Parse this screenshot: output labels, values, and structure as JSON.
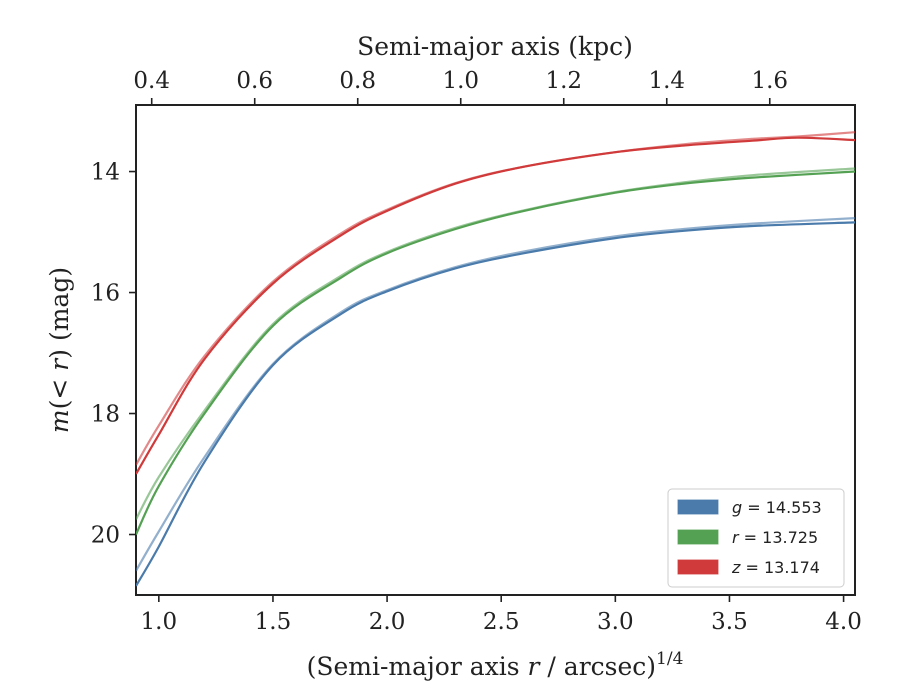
{
  "chart_data": {
    "type": "line",
    "xlabel_prefix": "(Semi-major axis ",
    "xlabel_var": "r",
    "xlabel_mid": " / arcsec)",
    "xlabel_sup": "1/4",
    "ylabel_func": "m",
    "ylabel_op": "(< ",
    "ylabel_var": "r",
    "ylabel_suffix": ") (mag)",
    "top_xlabel": "Semi-major axis (kpc)",
    "xlim": [
      0.9,
      4.05
    ],
    "ylim": [
      21.0,
      12.9
    ],
    "y_inverted": true,
    "x_ticks": [
      "1.0",
      "1.5",
      "2.0",
      "2.5",
      "3.0",
      "3.5",
      "4.0"
    ],
    "y_ticks": [
      "14",
      "16",
      "18",
      "20"
    ],
    "top_ticks": [
      "0.4",
      "0.6",
      "0.8",
      "1.0",
      "1.2",
      "1.4",
      "1.6"
    ],
    "legend_position": "lower-right",
    "series": [
      {
        "name": "g = 14.553",
        "band": "g",
        "mag": "14.553",
        "color": "#4a7bab",
        "x": [
          0.9,
          1.0,
          1.2,
          1.5,
          1.8,
          2.0,
          2.3,
          2.6,
          3.0,
          3.3,
          3.6,
          4.05
        ],
        "y": [
          20.85,
          20.2,
          18.8,
          17.2,
          16.35,
          15.98,
          15.6,
          15.35,
          15.1,
          14.98,
          14.9,
          14.84
        ],
        "fit": [
          20.6,
          19.95,
          18.72,
          17.18,
          16.32,
          15.96,
          15.58,
          15.32,
          15.07,
          14.95,
          14.86,
          14.77
        ]
      },
      {
        "name": "r = 13.725",
        "band": "r",
        "mag": "13.725",
        "color": "#55a154",
        "x": [
          0.9,
          1.0,
          1.2,
          1.5,
          1.8,
          2.0,
          2.3,
          2.6,
          3.0,
          3.3,
          3.6,
          4.05
        ],
        "y": [
          20.0,
          19.2,
          18.0,
          16.55,
          15.75,
          15.35,
          14.95,
          14.65,
          14.35,
          14.2,
          14.1,
          14.0
        ],
        "fit": [
          19.75,
          19.05,
          17.95,
          16.52,
          15.72,
          15.33,
          14.93,
          14.64,
          14.34,
          14.18,
          14.06,
          13.95
        ]
      },
      {
        "name": "z = 13.174",
        "band": "z",
        "mag": "13.174",
        "color": "#d03a3a",
        "x": [
          0.9,
          1.0,
          1.2,
          1.5,
          1.8,
          2.0,
          2.3,
          2.6,
          3.0,
          3.3,
          3.6,
          3.8,
          4.05
        ],
        "y": [
          19.0,
          18.35,
          17.1,
          15.85,
          15.05,
          14.65,
          14.2,
          13.92,
          13.68,
          13.57,
          13.49,
          13.44,
          13.48
        ],
        "fit": [
          18.85,
          18.2,
          17.05,
          15.82,
          15.02,
          14.63,
          14.19,
          13.92,
          13.68,
          13.55,
          13.46,
          13.42,
          13.35
        ]
      }
    ]
  }
}
